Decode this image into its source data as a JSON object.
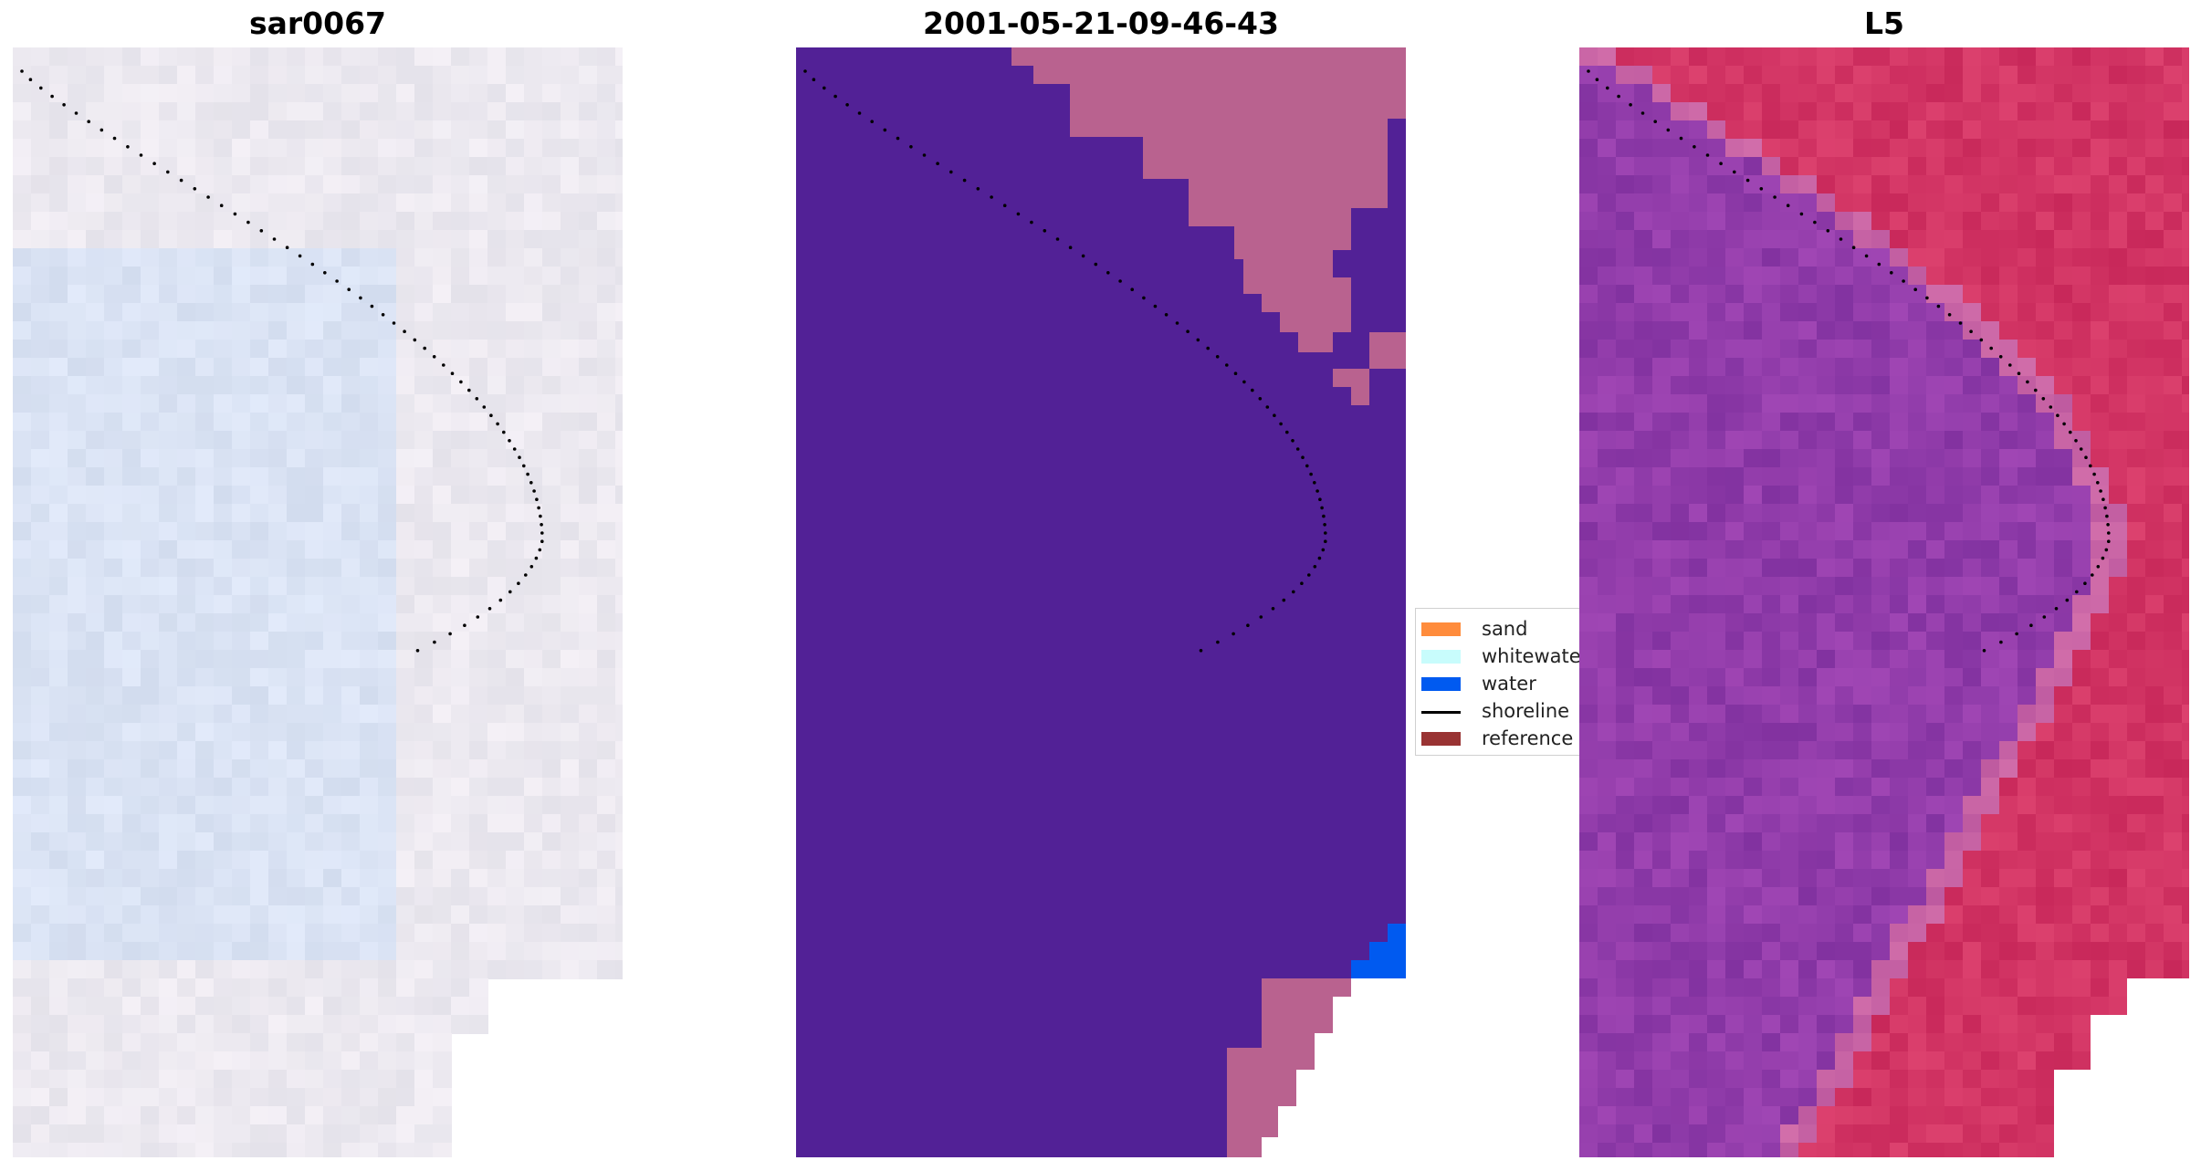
{
  "panels": [
    {
      "id": "rgb",
      "title": "sar0067"
    },
    {
      "id": "classified",
      "title": "2001-05-21-09-46-43"
    },
    {
      "id": "index",
      "title": "L5"
    }
  ],
  "legend": {
    "items": [
      {
        "label": "sand",
        "color": "#ff8c3c",
        "kind": "patch"
      },
      {
        "label": "whitewater",
        "color": "#c8fcfc",
        "kind": "patch"
      },
      {
        "label": "water",
        "color": "#005af0",
        "kind": "patch"
      },
      {
        "label": "shoreline",
        "color": "#000000",
        "kind": "line"
      },
      {
        "label": "reference s",
        "color": "#993333",
        "kind": "patch"
      }
    ]
  },
  "colors": {
    "classified_water": "#522196",
    "classified_land": "#b9628f",
    "classified_blue": "#005af0",
    "index_land": "#d33a68",
    "index_water": "#8a3aa8",
    "shoreline_dots": "#000000"
  }
}
